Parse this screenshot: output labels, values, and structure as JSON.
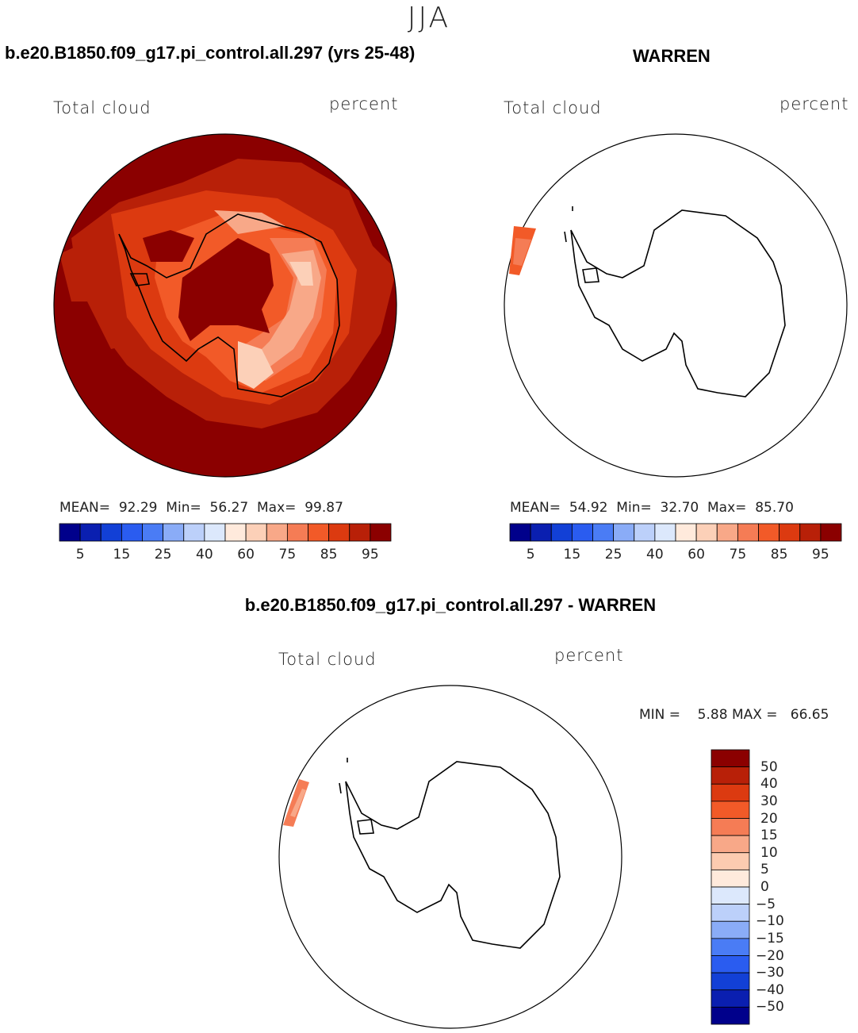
{
  "super_title": "JJA",
  "panels": [
    {
      "case_title": "b.e20.B1850.f09_g17.pi_control.all.297 (yrs 25-48)",
      "left_label": "Total cloud",
      "right_label": "percent",
      "stats": {
        "mean_label": "MEAN=",
        "mean": "92.29",
        "min_label": "Min=",
        "min": "56.27",
        "max_label": "Max=",
        "max": "99.87"
      }
    },
    {
      "case_title": "WARREN",
      "left_label": "Total cloud",
      "right_label": "percent",
      "stats": {
        "mean_label": "MEAN=",
        "mean": "54.92",
        "min_label": "Min=",
        "min": "32.70",
        "max_label": "Max=",
        "max": "85.70"
      }
    },
    {
      "case_title": "b.e20.B1850.f09_g17.pi_control.all.297 - WARREN",
      "left_label": "Total cloud",
      "right_label": "percent",
      "stats": {
        "min_label": "MIN =",
        "min": "5.88",
        "max_label": "MAX =",
        "max": "66.65"
      }
    }
  ],
  "abs_colorbar": {
    "colors": [
      "#00008b",
      "#0a1fb0",
      "#1240d6",
      "#2a5cf0",
      "#4a7cf5",
      "#8aacf7",
      "#bcd0fa",
      "#dce8fc",
      "#ffeadc",
      "#fcd0b8",
      "#f8a888",
      "#f57c55",
      "#f25a28",
      "#dc3a10",
      "#b82008",
      "#8b0000"
    ],
    "tick_labels": [
      "5",
      "15",
      "25",
      "40",
      "60",
      "75",
      "85",
      "95"
    ]
  },
  "diff_colorbar": {
    "colors_top_to_bottom": [
      "#8b0000",
      "#b82008",
      "#dc3a10",
      "#f25a28",
      "#f57c55",
      "#f8a888",
      "#fccbb0",
      "#ffeadc",
      "#dce8fc",
      "#bcd0fa",
      "#8aacf7",
      "#4a7cf5",
      "#2a5cf0",
      "#1240d6",
      "#0a1fb0",
      "#00008b"
    ],
    "tick_labels": [
      "50",
      "40",
      "30",
      "20",
      "15",
      "10",
      "5",
      "0",
      "−5",
      "−10",
      "−15",
      "−20",
      "−30",
      "−40",
      "−50"
    ]
  }
}
